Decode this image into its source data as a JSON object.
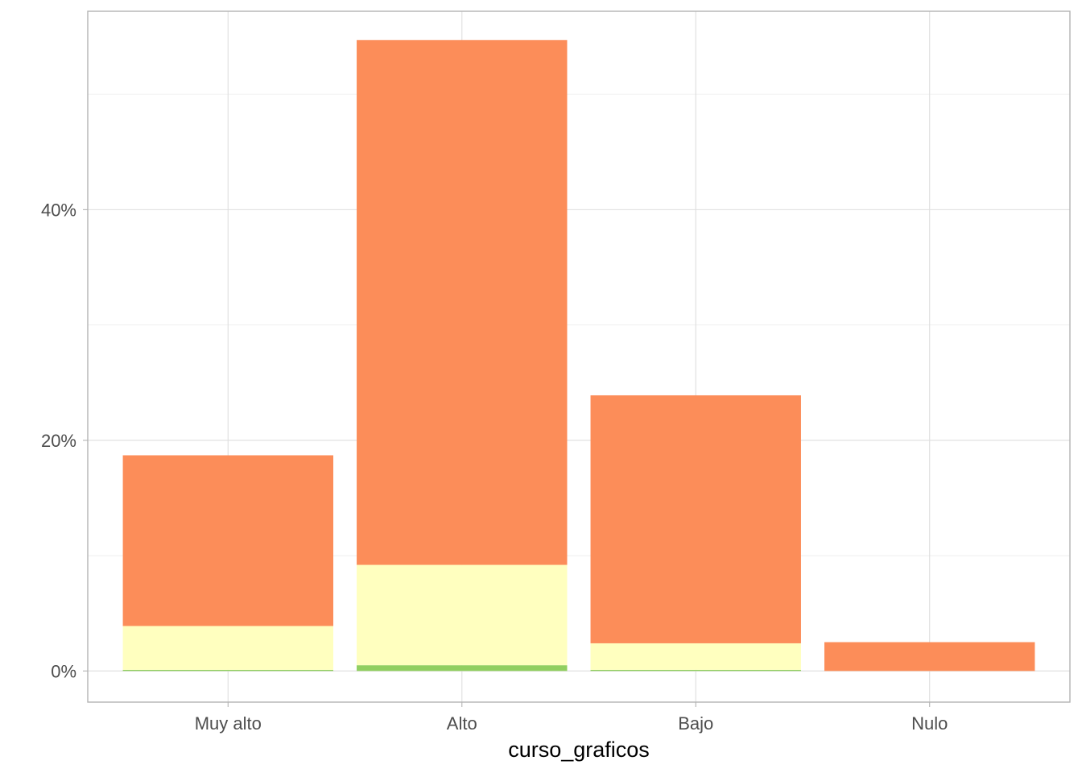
{
  "chart_data": {
    "type": "bar",
    "stacked": true,
    "title": "",
    "xlabel": "curso_graficos",
    "ylabel": "",
    "categories": [
      "Muy alto",
      "Alto",
      "Bajo",
      "Nulo"
    ],
    "y_ticks": [
      0,
      20,
      40
    ],
    "y_tick_labels": [
      "0%",
      "20%",
      "40%"
    ],
    "ylim": [
      -2.7,
      57.2
    ],
    "grid": true,
    "legend": "none",
    "series": [
      {
        "color": "#91cf60",
        "values": [
          0.1,
          0.5,
          0.1,
          0.0
        ]
      },
      {
        "color": "#ffffbf",
        "values": [
          3.8,
          8.7,
          2.3,
          0.0
        ]
      },
      {
        "color": "#fc8d59",
        "values": [
          14.8,
          45.5,
          21.5,
          2.5
        ]
      }
    ]
  }
}
